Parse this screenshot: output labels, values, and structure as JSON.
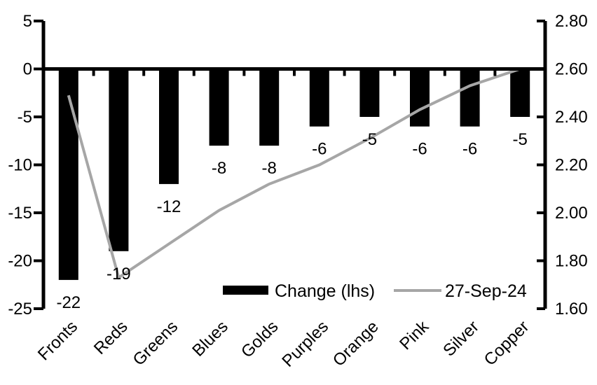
{
  "chart_data": {
    "type": "bar",
    "subtype": "dual-axis bar + line combo",
    "title": "",
    "xlabel": "",
    "ylabel": "",
    "categories": [
      "Fronts",
      "Reds",
      "Greens",
      "Blues",
      "Golds",
      "Purples",
      "Orange",
      "Pink",
      "Silver",
      "Copper"
    ],
    "series": [
      {
        "name": "Change (lhs)",
        "type": "bar",
        "axis": "left",
        "color": "#000000",
        "values": [
          -22,
          -19,
          -12,
          -8,
          -8,
          -6,
          -5,
          -6,
          -6,
          -5
        ],
        "data_labels": [
          "-22",
          "-19",
          "-12",
          "-8",
          "-8",
          "-6",
          "-5",
          "-6",
          "-6",
          "-5"
        ]
      },
      {
        "name": "27-Sep-24",
        "type": "line",
        "axis": "right",
        "color": "#a6a6a6",
        "values": [
          2.49,
          1.73,
          1.87,
          2.01,
          2.12,
          2.2,
          2.31,
          2.43,
          2.53,
          2.6
        ]
      }
    ],
    "left_axis": {
      "min": -25,
      "max": 5,
      "tick_step": 5,
      "tick_labels": [
        "5",
        "0",
        "-5",
        "-10",
        "-15",
        "-20",
        "-25"
      ]
    },
    "right_axis": {
      "min": 1.6,
      "max": 2.8,
      "tick_step": 0.2,
      "tick_labels": [
        "2.80",
        "2.60",
        "2.40",
        "2.20",
        "2.00",
        "1.80",
        "1.60"
      ]
    },
    "grid": false,
    "legend_position": "inside-bottom-center",
    "category_label_rotation_deg": -45
  },
  "colors": {
    "background": "#ffffff",
    "bar": "#000000",
    "line": "#a6a6a6",
    "axis": "#000000",
    "text": "#000000"
  }
}
